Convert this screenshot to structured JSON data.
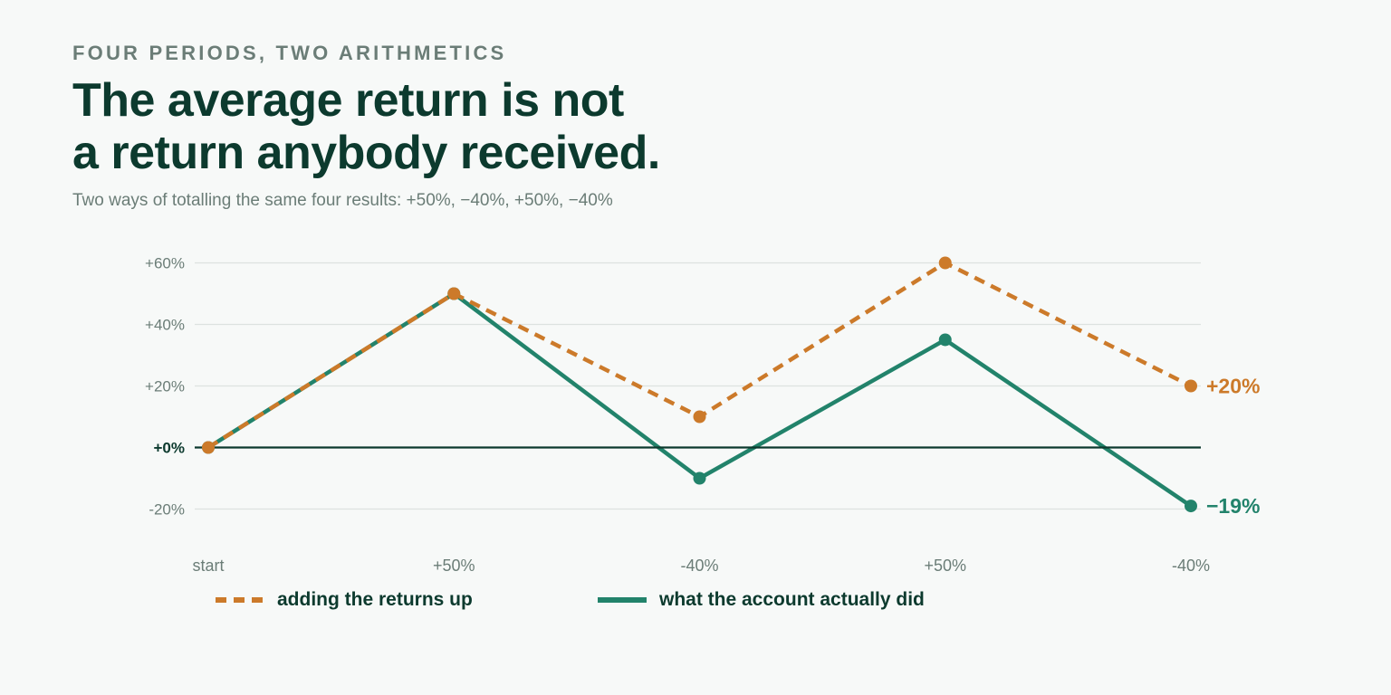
{
  "kicker": "FOUR PERIODS, TWO ARITHMETICS",
  "title_line1": "The average return is not",
  "title_line2": "a return anybody received.",
  "subtitle": "Two ways of totalling the same four results: +50%, −40%, +50%, −40%",
  "colors": {
    "added": "#cc7a2a",
    "actual": "#22836b",
    "text_dark": "#0c3a2e",
    "text_muted": "#6b7d77",
    "grid": "#dde2e0"
  },
  "chart_data": {
    "type": "line",
    "categories": [
      "start",
      "+50%",
      "-40%",
      "+50%",
      "-40%"
    ],
    "y_ticks": [
      60,
      40,
      20,
      0,
      -20
    ],
    "y_tick_labels": [
      "+60%",
      "+40%",
      "+20%",
      "+0%",
      "-20%"
    ],
    "ylim": [
      -30,
      60
    ],
    "grid": true,
    "legend_position": "bottom",
    "series": [
      {
        "name": "adding the returns up",
        "values": [
          0,
          50,
          10,
          60,
          20
        ],
        "end_label": "+20%",
        "style": "dashed",
        "color": "#cc7a2a"
      },
      {
        "name": "what the account actually did",
        "values": [
          0,
          50,
          -10,
          35,
          -19
        ],
        "end_label": "−19%",
        "style": "solid",
        "color": "#22836b"
      }
    ]
  }
}
